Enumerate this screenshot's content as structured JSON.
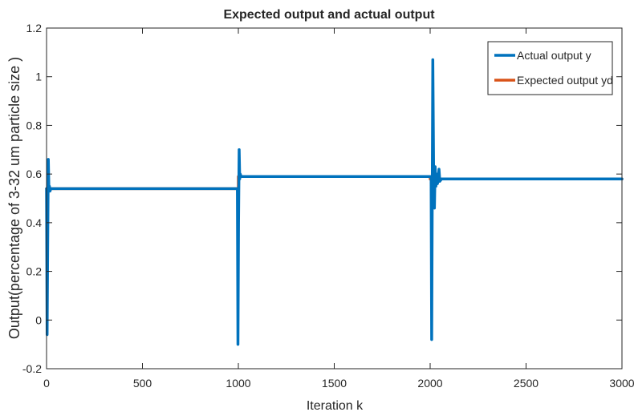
{
  "chart_data": {
    "type": "line",
    "title": "Expected output and actual output",
    "xlabel": "Iteration k",
    "ylabel": "Output(percentage of 3-32 um particle size )",
    "xlim": [
      0,
      3000
    ],
    "ylim": [
      -0.2,
      1.2
    ],
    "xticks": [
      0,
      500,
      1000,
      1500,
      2000,
      2500,
      3000
    ],
    "yticks": [
      -0.2,
      0,
      0.2,
      0.4,
      0.6,
      0.8,
      1,
      1.2
    ],
    "ytick_labels": [
      "-0.2",
      "0",
      "0.2",
      "0.4",
      "0.6",
      "0.8",
      "1",
      "1.2"
    ],
    "grid": false,
    "legend_position": "top-right",
    "series": [
      {
        "name": "Actual output y",
        "color": "#0072BD",
        "x": [
          0,
          3,
          6,
          9,
          12,
          15,
          18,
          22,
          30,
          995,
          998,
          1001,
          1004,
          1007,
          1010,
          1014,
          1020,
          2005,
          2008,
          2011,
          2014,
          2018,
          2022,
          2026,
          2030,
          2034,
          2038,
          2042,
          2046,
          2050,
          2060,
          3000
        ],
        "y": [
          0.54,
          -0.06,
          0.3,
          0.66,
          0.54,
          0.55,
          0.53,
          0.54,
          0.54,
          0.54,
          -0.1,
          0.4,
          0.7,
          0.58,
          0.6,
          0.59,
          0.59,
          0.59,
          -0.08,
          0.5,
          1.07,
          0.62,
          0.46,
          0.63,
          0.55,
          0.6,
          0.56,
          0.58,
          0.62,
          0.57,
          0.58,
          0.58
        ]
      },
      {
        "name": "Expected output yd",
        "color": "#D95319",
        "x": [
          0,
          1000,
          1000,
          2000,
          2000,
          3000
        ],
        "y": [
          0.54,
          0.54,
          0.59,
          0.59,
          0.58,
          0.58
        ]
      }
    ]
  }
}
